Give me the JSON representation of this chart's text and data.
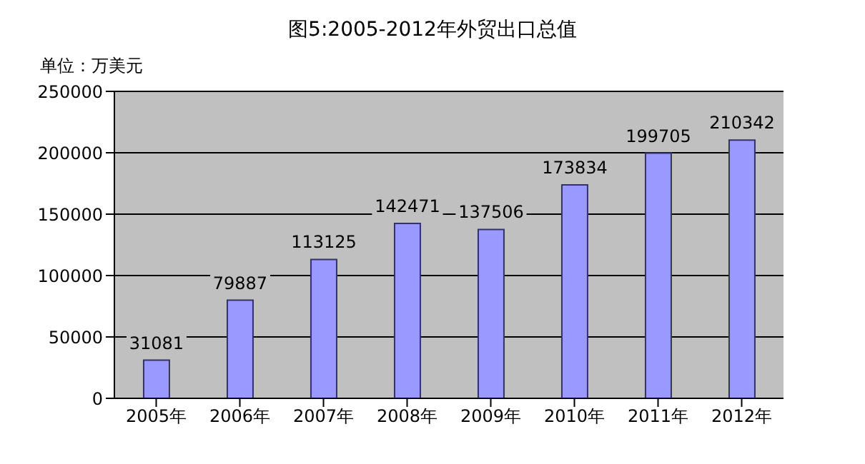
{
  "chart_data": {
    "type": "bar",
    "title": "图5:2005-2012年外贸出口总值",
    "ylabel": "单位：万美元",
    "categories": [
      "2005年",
      "2006年",
      "2007年",
      "2008年",
      "2009年",
      "2010年",
      "2011年",
      "2012年"
    ],
    "values": [
      31081,
      79887,
      113125,
      142471,
      137506,
      173834,
      199705,
      210342
    ],
    "color": "#9999ff",
    "ylim": [
      0,
      250000
    ],
    "yticks": [
      0,
      50000,
      100000,
      150000,
      200000,
      250000
    ],
    "grid": "y",
    "data_labels": true
  }
}
